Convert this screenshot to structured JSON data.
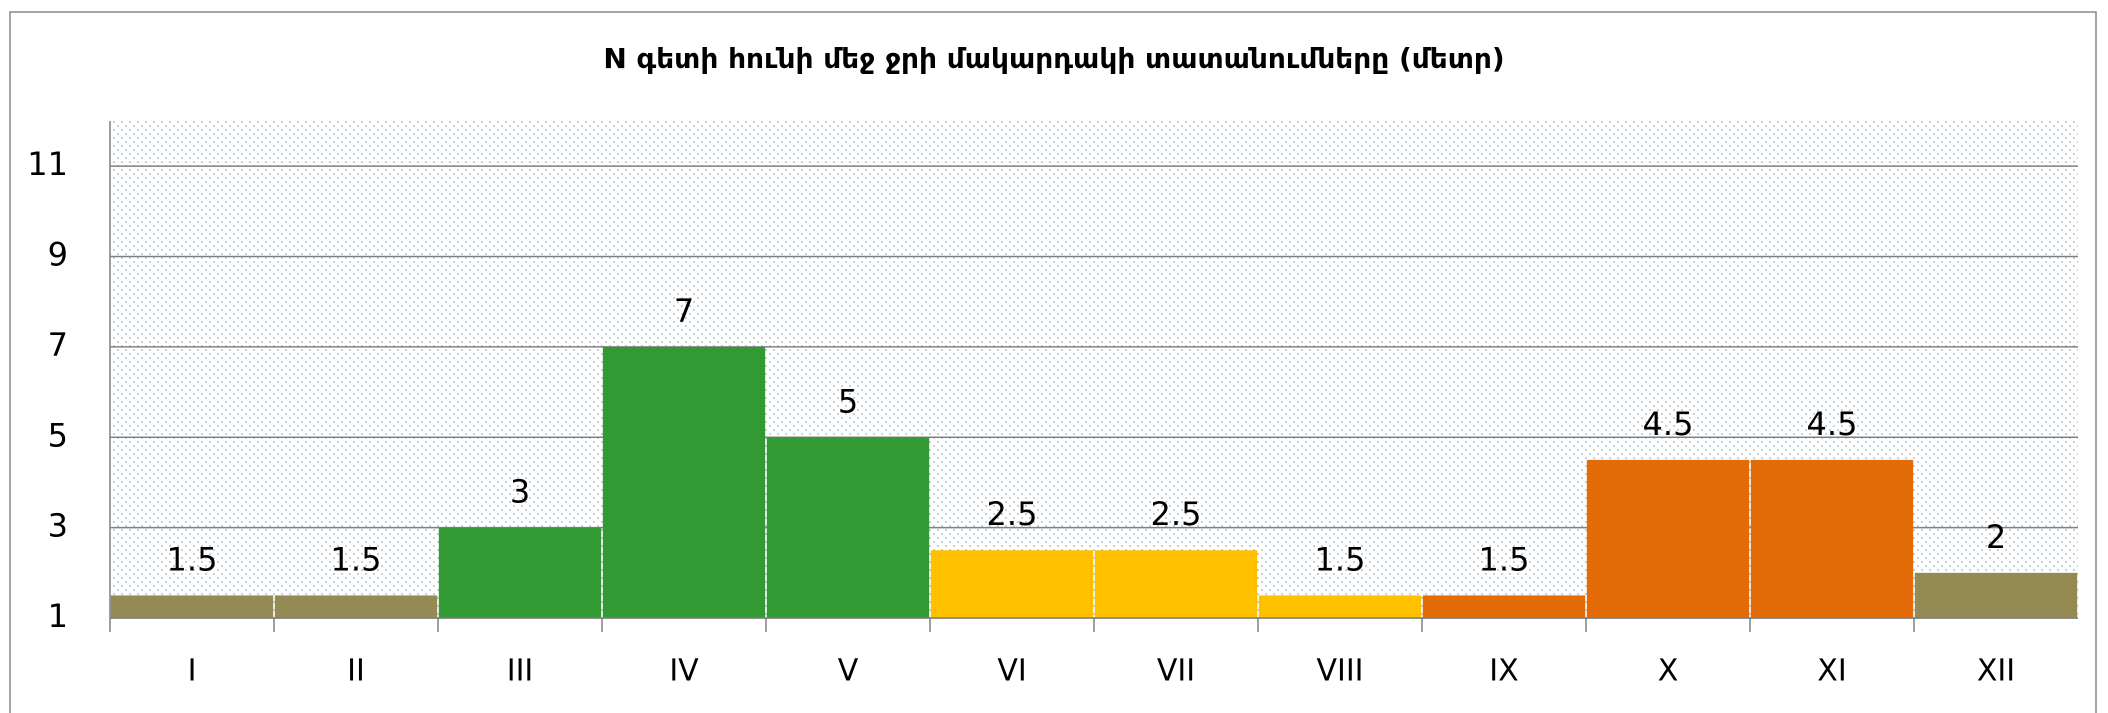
{
  "chart_data": {
    "type": "bar",
    "title": "N գետի հունի մեջ ջրի մակարդակի տատանումները (մետր)",
    "categories": [
      "I",
      "II",
      "III",
      "IV",
      "V",
      "VI",
      "VII",
      "VIII",
      "IX",
      "X",
      "XI",
      "XII"
    ],
    "values": [
      1.5,
      1.5,
      3,
      7,
      5,
      2.5,
      2.5,
      1.5,
      1.5,
      4.5,
      4.5,
      2
    ],
    "colors": [
      "#948a54",
      "#948a54",
      "#339933",
      "#339933",
      "#339933",
      "#ffc000",
      "#ffc000",
      "#ffc000",
      "#e36c09",
      "#e36c09",
      "#e36c09",
      "#948a54"
    ],
    "ylim": [
      1,
      12
    ],
    "yticks": [
      1,
      3,
      5,
      7,
      9,
      11
    ],
    "grid": true
  }
}
